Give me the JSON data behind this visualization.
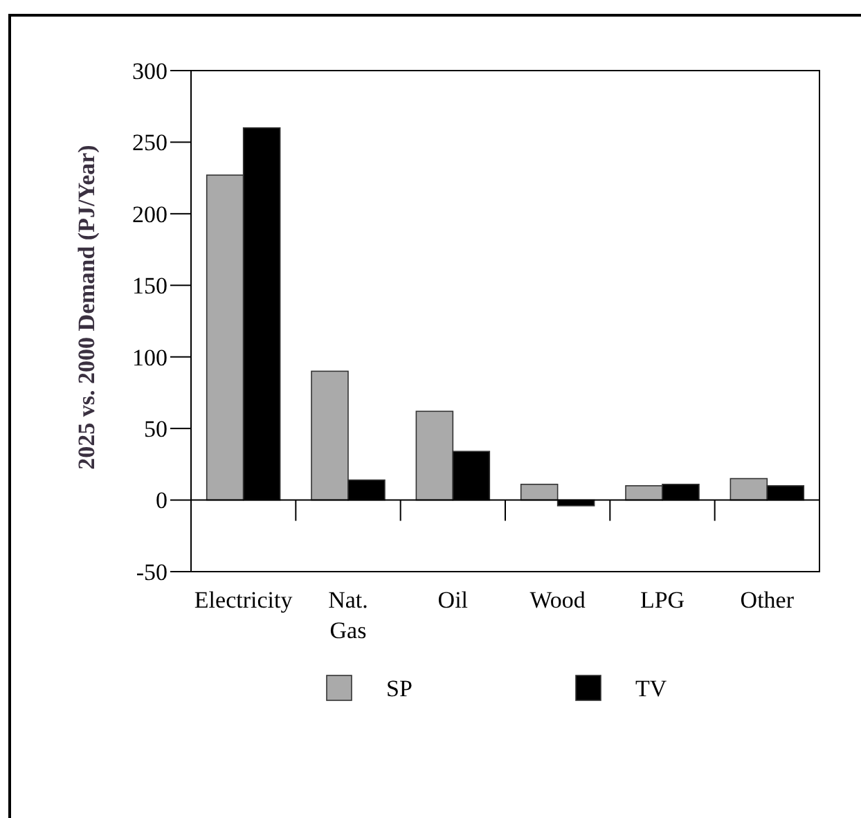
{
  "chart_data": {
    "type": "bar",
    "ylabel": "2025 vs. 2000 Demand (PJ/Year)",
    "categories": [
      "Electricity",
      "Nat. Gas",
      "Oil",
      "Wood",
      "LPG",
      "Other"
    ],
    "series": [
      {
        "name": "SP",
        "color": "#aaaaaa",
        "values": [
          227,
          90,
          62,
          11,
          10,
          15
        ]
      },
      {
        "name": "TV",
        "color": "#000000",
        "values": [
          260,
          14,
          34,
          -4,
          11,
          10
        ]
      }
    ],
    "ylim": [
      -50,
      300
    ],
    "yticks": [
      -50,
      0,
      50,
      100,
      150,
      200,
      250,
      300
    ],
    "legend": "bottom"
  }
}
